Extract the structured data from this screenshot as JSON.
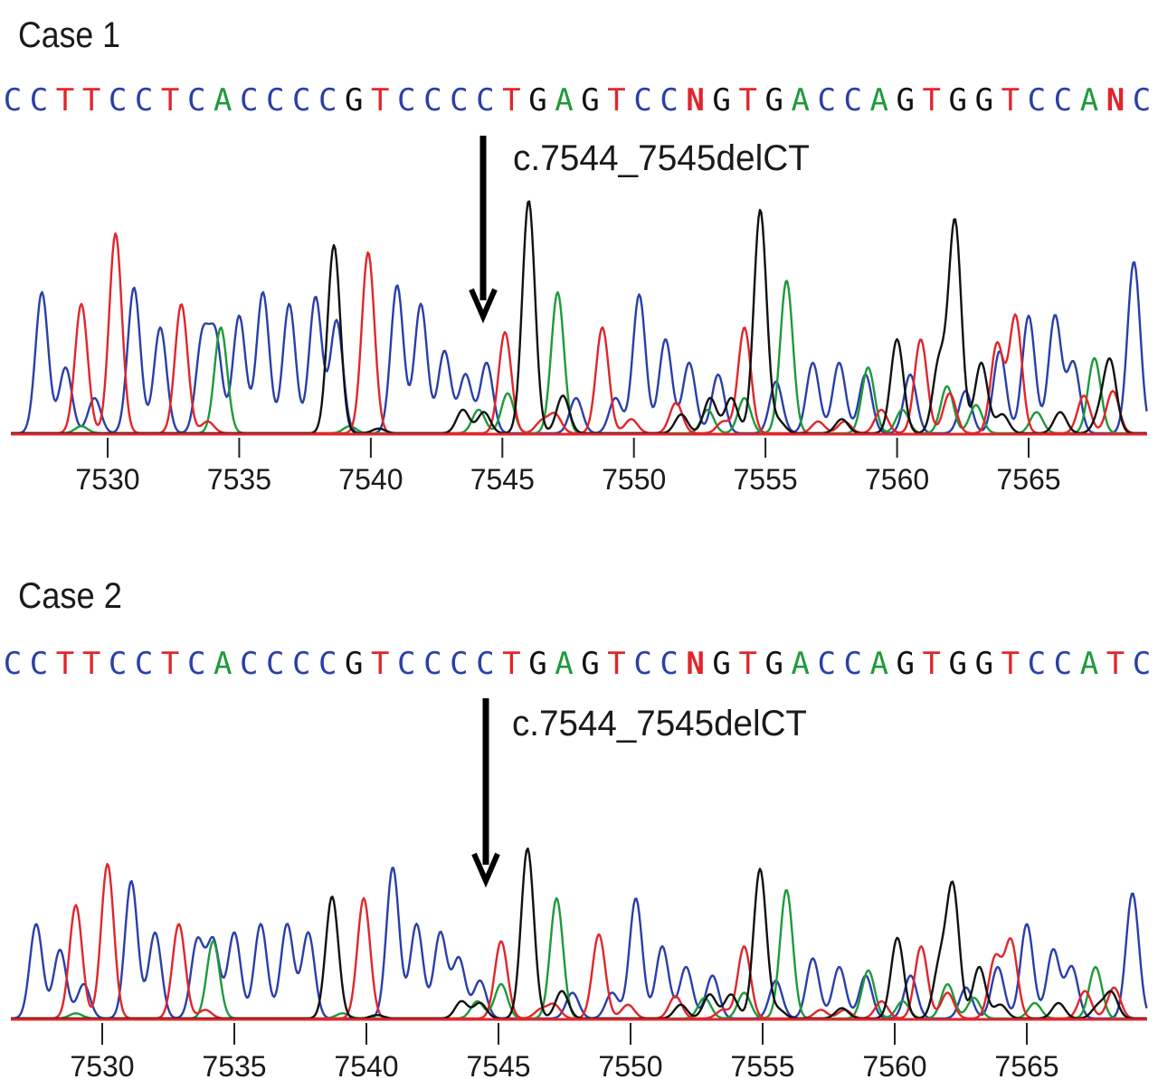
{
  "chart_data": [
    {
      "type": "line",
      "title": "Case 1",
      "sequence": "CCTTCCTCACCCCGTCCCCTGAGTCCNGTGACCAGTGGTCCANC",
      "annotation": "c.7544_7545delCT",
      "annotation_x": 7544,
      "xlim": [
        7527,
        7569.5
      ],
      "x_ticks": [
        7530,
        7535,
        7540,
        7545,
        7550,
        7555,
        7560,
        7565
      ],
      "x_tick_labels": [
        "7530",
        "7535",
        "7540",
        "7545",
        "7550",
        "7555",
        "7560",
        "7565"
      ],
      "series": [
        {
          "base": "C",
          "color": "#2a3fa8",
          "peaks": [
            [
              7527.5,
              0.6
            ],
            [
              7528.4,
              0.28
            ],
            [
              7529.5,
              0.15
            ],
            [
              7531.0,
              0.62
            ],
            [
              7532.0,
              0.45
            ],
            [
              7533.6,
              0.4
            ],
            [
              7534.1,
              0.4
            ],
            [
              7535.0,
              0.5
            ],
            [
              7535.9,
              0.6
            ],
            [
              7536.9,
              0.55
            ],
            [
              7537.9,
              0.58
            ],
            [
              7538.7,
              0.48
            ],
            [
              7541.0,
              0.63
            ],
            [
              7541.9,
              0.55
            ],
            [
              7542.8,
              0.35
            ],
            [
              7543.6,
              0.25
            ],
            [
              7544.4,
              0.3
            ],
            [
              7547.8,
              0.15
            ],
            [
              7549.3,
              0.15
            ],
            [
              7550.2,
              0.59
            ],
            [
              7551.2,
              0.4
            ],
            [
              7552.1,
              0.3
            ],
            [
              7553.2,
              0.25
            ],
            [
              7555.4,
              0.22
            ],
            [
              7556.8,
              0.3
            ],
            [
              7557.8,
              0.3
            ],
            [
              7558.8,
              0.25
            ],
            [
              7560.5,
              0.25
            ],
            [
              7562.6,
              0.18
            ],
            [
              7563.9,
              0.35
            ],
            [
              7565.0,
              0.5
            ],
            [
              7566.0,
              0.5
            ],
            [
              7566.7,
              0.3
            ],
            [
              7569.0,
              0.73
            ]
          ]
        },
        {
          "base": "A",
          "color": "#1e9a3a",
          "peaks": [
            [
              7529.0,
              0.03
            ],
            [
              7534.3,
              0.45
            ],
            [
              7539.2,
              0.03
            ],
            [
              7544.1,
              0.1
            ],
            [
              7545.2,
              0.17
            ],
            [
              7547.1,
              0.6
            ],
            [
              7552.8,
              0.1
            ],
            [
              7554.2,
              0.15
            ],
            [
              7555.8,
              0.65
            ],
            [
              7558.9,
              0.28
            ],
            [
              7560.2,
              0.1
            ],
            [
              7561.9,
              0.2
            ],
            [
              7563.0,
              0.12
            ],
            [
              7565.3,
              0.09
            ],
            [
              7567.5,
              0.32
            ]
          ]
        },
        {
          "base": "T",
          "color": "#e0262b",
          "peaks": [
            [
              7529.0,
              0.55
            ],
            [
              7530.3,
              0.85
            ],
            [
              7532.8,
              0.55
            ],
            [
              7533.8,
              0.05
            ],
            [
              7539.9,
              0.77
            ],
            [
              7545.1,
              0.43
            ],
            [
              7546.5,
              0.05
            ],
            [
              7547.0,
              0.08
            ],
            [
              7548.8,
              0.45
            ],
            [
              7549.9,
              0.06
            ],
            [
              7551.6,
              0.13
            ],
            [
              7553.4,
              0.05
            ],
            [
              7554.2,
              0.45
            ],
            [
              7557.0,
              0.05
            ],
            [
              7558.0,
              0.05
            ],
            [
              7559.4,
              0.1
            ],
            [
              7560.9,
              0.4
            ],
            [
              7562.0,
              0.17
            ],
            [
              7563.8,
              0.38
            ],
            [
              7564.5,
              0.5
            ],
            [
              7567.1,
              0.16
            ],
            [
              7568.2,
              0.18
            ]
          ]
        },
        {
          "base": "G",
          "color": "#111111",
          "peaks": [
            [
              7538.6,
              0.8
            ],
            [
              7540.3,
              0.02
            ],
            [
              7543.5,
              0.1
            ],
            [
              7544.3,
              0.09
            ],
            [
              7546.0,
              0.99
            ],
            [
              7547.3,
              0.16
            ],
            [
              7551.8,
              0.08
            ],
            [
              7552.9,
              0.15
            ],
            [
              7553.7,
              0.15
            ],
            [
              7554.8,
              0.95
            ],
            [
              7555.5,
              0.05
            ],
            [
              7557.9,
              0.06
            ],
            [
              7560.0,
              0.4
            ],
            [
              7561.6,
              0.3
            ],
            [
              7562.2,
              0.9
            ],
            [
              7563.2,
              0.3
            ],
            [
              7564.0,
              0.08
            ],
            [
              7566.2,
              0.09
            ],
            [
              7567.7,
              0.07
            ],
            [
              7568.1,
              0.3
            ]
          ]
        }
      ]
    },
    {
      "type": "line",
      "title": "Case 2",
      "sequence": "CCTTCCTCACCCCGTCCCCTGAGTCCNGTGACCAGTGGTCCATC",
      "annotation": "c.7544_7545delCT",
      "annotation_x": 7544,
      "xlim": [
        7527,
        7569.5
      ],
      "x_ticks": [
        7530,
        7535,
        7540,
        7545,
        7550,
        7555,
        7560,
        7565
      ],
      "x_tick_labels": [
        "7530",
        "7535",
        "7540",
        "7545",
        "7550",
        "7555",
        "7560",
        "7565"
      ],
      "series": [
        {
          "base": "C",
          "color": "#2a3fa8",
          "peaks": [
            [
              7527.5,
              0.55
            ],
            [
              7528.4,
              0.4
            ],
            [
              7529.3,
              0.2
            ],
            [
              7531.1,
              0.8
            ],
            [
              7532.0,
              0.5
            ],
            [
              7533.6,
              0.45
            ],
            [
              7534.2,
              0.45
            ],
            [
              7535.0,
              0.5
            ],
            [
              7536.0,
              0.55
            ],
            [
              7537.0,
              0.55
            ],
            [
              7537.8,
              0.5
            ],
            [
              7541.0,
              0.88
            ],
            [
              7541.9,
              0.55
            ],
            [
              7542.8,
              0.5
            ],
            [
              7543.5,
              0.35
            ],
            [
              7544.3,
              0.22
            ],
            [
              7547.8,
              0.15
            ],
            [
              7549.3,
              0.15
            ],
            [
              7550.2,
              0.7
            ],
            [
              7551.2,
              0.42
            ],
            [
              7552.1,
              0.3
            ],
            [
              7553.1,
              0.25
            ],
            [
              7555.5,
              0.22
            ],
            [
              7556.9,
              0.35
            ],
            [
              7557.9,
              0.3
            ],
            [
              7558.9,
              0.25
            ],
            [
              7560.6,
              0.25
            ],
            [
              7562.7,
              0.18
            ],
            [
              7563.9,
              0.3
            ],
            [
              7565.0,
              0.55
            ],
            [
              7566.0,
              0.4
            ],
            [
              7566.7,
              0.3
            ],
            [
              7569.0,
              0.73
            ]
          ]
        },
        {
          "base": "A",
          "color": "#1e9a3a",
          "peaks": [
            [
              7529.0,
              0.03
            ],
            [
              7534.2,
              0.45
            ],
            [
              7539.1,
              0.03
            ],
            [
              7544.2,
              0.1
            ],
            [
              7545.1,
              0.2
            ],
            [
              7547.2,
              0.7
            ],
            [
              7552.8,
              0.12
            ],
            [
              7554.3,
              0.15
            ],
            [
              7555.9,
              0.75
            ],
            [
              7559.0,
              0.28
            ],
            [
              7560.3,
              0.1
            ],
            [
              7562.0,
              0.2
            ],
            [
              7563.0,
              0.12
            ],
            [
              7565.3,
              0.09
            ],
            [
              7567.6,
              0.3
            ]
          ]
        },
        {
          "base": "T",
          "color": "#e0262b",
          "peaks": [
            [
              7529.0,
              0.66
            ],
            [
              7530.2,
              0.9
            ],
            [
              7532.9,
              0.55
            ],
            [
              7533.9,
              0.05
            ],
            [
              7539.9,
              0.7
            ],
            [
              7545.1,
              0.45
            ],
            [
              7546.6,
              0.05
            ],
            [
              7547.1,
              0.08
            ],
            [
              7548.8,
              0.49
            ],
            [
              7549.9,
              0.08
            ],
            [
              7551.7,
              0.13
            ],
            [
              7553.5,
              0.05
            ],
            [
              7554.3,
              0.42
            ],
            [
              7557.2,
              0.05
            ],
            [
              7558.1,
              0.05
            ],
            [
              7559.5,
              0.1
            ],
            [
              7561.0,
              0.42
            ],
            [
              7562.0,
              0.15
            ],
            [
              7563.8,
              0.35
            ],
            [
              7564.4,
              0.45
            ],
            [
              7567.2,
              0.16
            ],
            [
              7568.3,
              0.18
            ]
          ]
        },
        {
          "base": "G",
          "color": "#111111",
          "peaks": [
            [
              7538.7,
              0.71
            ],
            [
              7540.4,
              0.02
            ],
            [
              7543.6,
              0.1
            ],
            [
              7544.3,
              0.09
            ],
            [
              7546.1,
              0.99
            ],
            [
              7547.4,
              0.16
            ],
            [
              7551.9,
              0.08
            ],
            [
              7553.0,
              0.14
            ],
            [
              7553.8,
              0.14
            ],
            [
              7554.9,
              0.87
            ],
            [
              7555.6,
              0.05
            ],
            [
              7558.0,
              0.06
            ],
            [
              7560.1,
              0.47
            ],
            [
              7561.7,
              0.3
            ],
            [
              7562.2,
              0.76
            ],
            [
              7563.2,
              0.3
            ],
            [
              7564.0,
              0.08
            ],
            [
              7566.2,
              0.09
            ],
            [
              7567.7,
              0.07
            ],
            [
              7568.2,
              0.15
            ]
          ]
        }
      ]
    }
  ],
  "base_colors": {
    "C": "#2a3fa8",
    "A": "#1e9a3a",
    "T": "#e0262b",
    "G": "#111111",
    "N": "#e0262b"
  }
}
